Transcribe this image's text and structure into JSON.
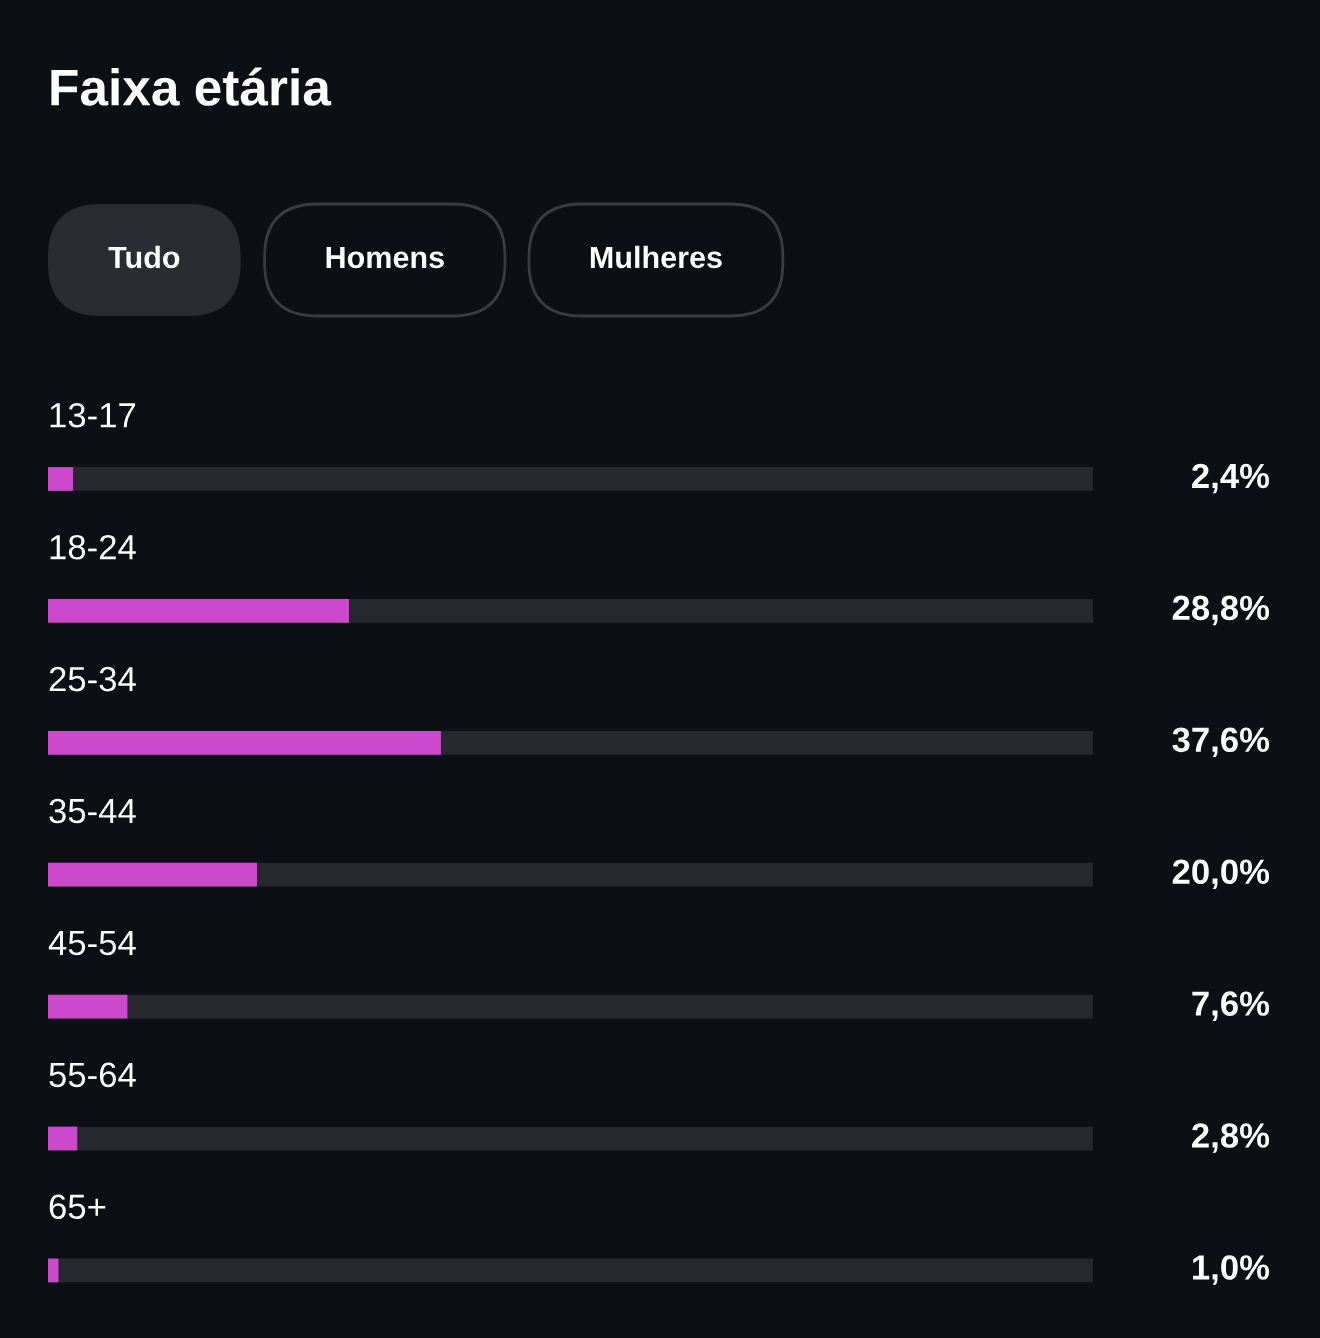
{
  "chart_data": {
    "type": "bar",
    "orientation": "horizontal",
    "title": "Faixa etária",
    "annotations": [
      "Tudo",
      "Homens",
      "Mulheres"
    ],
    "categories": [
      "13-17",
      "18-24",
      "25-34",
      "35-44",
      "45-54",
      "55-64",
      "65+"
    ],
    "values": [
      2.4,
      28.8,
      37.6,
      20.0,
      7.6,
      2.8,
      1.0
    ],
    "value_labels": [
      "2,4%",
      "28,8%",
      "37,6%",
      "20,0%",
      "7,6%",
      "2,8%",
      "1,0%"
    ],
    "color": "#cc48cc",
    "xlim": [
      0,
      100
    ]
  }
}
